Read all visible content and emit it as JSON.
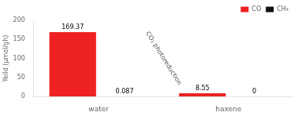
{
  "chart_data": {
    "type": "bar",
    "categories": [
      "water",
      "haxene"
    ],
    "series": [
      {
        "name": "CO",
        "color": "#EE2222",
        "values": [
          169.37,
          8.55
        ]
      },
      {
        "name": "CH₄",
        "color": "#111111",
        "values": [
          0.087,
          0
        ]
      }
    ],
    "y_label": "Yeild (μmol/gh)",
    "annotation": "CO₂ photoreduction",
    "ylim": [
      0,
      200
    ],
    "yticks": [
      0,
      50,
      100,
      150,
      200
    ],
    "grid": false,
    "legend": "upper right",
    "data_labels": true
  }
}
